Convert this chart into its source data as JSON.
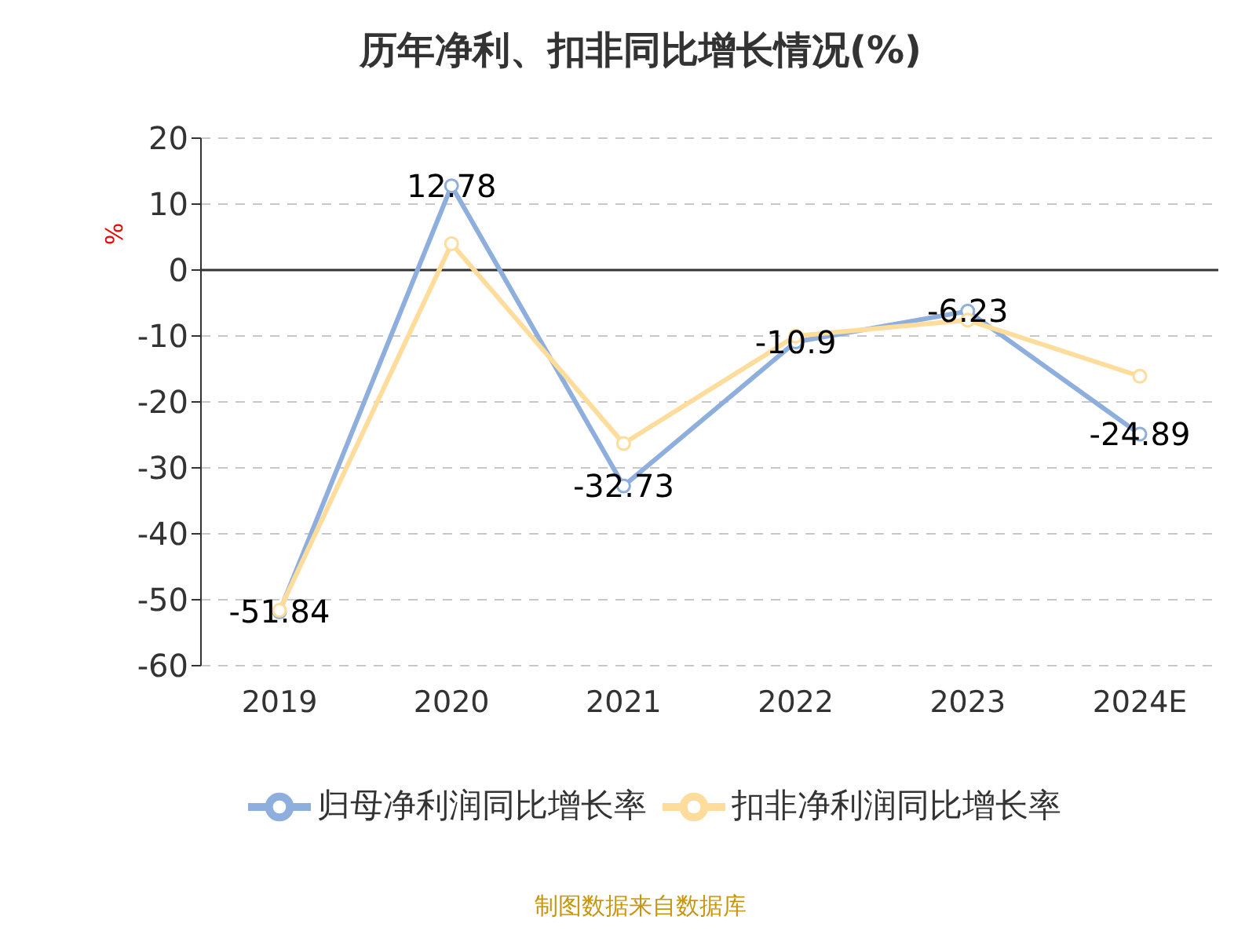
{
  "chart_data": {
    "type": "line",
    "title": "历年净利、扣非同比增长情况(%)",
    "ylabel": "%",
    "categories": [
      "2019",
      "2020",
      "2021",
      "2022",
      "2023",
      "2024E"
    ],
    "series": [
      {
        "name": "归母净利润同比增长率",
        "color": "#8eaedd",
        "values": [
          -51.84,
          12.78,
          -32.73,
          -10.9,
          -6.23,
          -24.89
        ],
        "value_labels": [
          "-51.84",
          "12.78",
          "-32.73",
          "-10.9",
          "-6.23",
          "-24.89"
        ]
      },
      {
        "name": "扣非净利润同比增长率",
        "color": "#fddc9c",
        "values": [
          -51.6,
          4.0,
          -26.3,
          -10.0,
          -7.6,
          -16.1
        ]
      }
    ],
    "ylim": [
      -60,
      20
    ],
    "yticks": [
      -60,
      -50,
      -40,
      -30,
      -20,
      -10,
      0,
      10,
      20
    ],
    "grid": "y",
    "legend": "bottom",
    "marker": "circle",
    "line_style": "solid",
    "annotations": [
      "制图数据来自数据库"
    ]
  }
}
